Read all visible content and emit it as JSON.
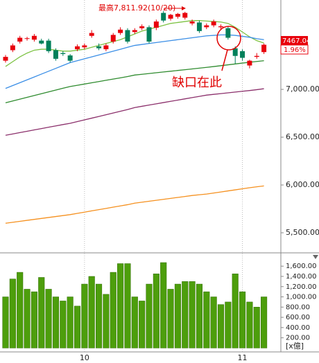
{
  "chart_data": [
    {
      "type": "candlestick",
      "open": [
        7300,
        7410,
        7500,
        7530,
        7520,
        7510,
        7510,
        7410,
        7380,
        7355,
        7420,
        7440,
        7560,
        7450,
        7420,
        7500,
        7590,
        7620,
        7600,
        7640,
        7650,
        7645,
        7800,
        7740,
        7760,
        7750,
        7690,
        7700,
        7650,
        7670,
        7650,
        7640,
        7430,
        7400,
        7250,
        7340,
        7390
      ],
      "high": [
        7360,
        7480,
        7560,
        7550,
        7580,
        7530,
        7530,
        7430,
        7400,
        7370,
        7470,
        7480,
        7620,
        7480,
        7480,
        7590,
        7650,
        7640,
        7640,
        7680,
        7670,
        7730,
        7820,
        7790,
        7800,
        7811.92,
        7730,
        7720,
        7690,
        7730,
        7680,
        7660,
        7450,
        7420,
        7310,
        7380,
        7480
      ],
      "low": [
        7280,
        7390,
        7480,
        7510,
        7500,
        7470,
        7380,
        7300,
        7350,
        7280,
        7400,
        7420,
        7540,
        7410,
        7400,
        7480,
        7570,
        7480,
        7580,
        7620,
        7480,
        7620,
        7700,
        7720,
        7740,
        7730,
        7670,
        7590,
        7630,
        7650,
        7630,
        7520,
        7270,
        7300,
        7220,
        7320,
        7370
      ],
      "close": [
        7340,
        7460,
        7540,
        7535,
        7560,
        7480,
        7400,
        7320,
        7370,
        7300,
        7450,
        7460,
        7590,
        7430,
        7460,
        7570,
        7625,
        7500,
        7620,
        7660,
        7500,
        7710,
        7720,
        7780,
        7790,
        7800,
        7710,
        7610,
        7670,
        7710,
        7660,
        7540,
        7350,
        7330,
        7300,
        7350,
        7467.04
      ],
      "up_color": "#e8000b",
      "down_color": "#00805a",
      "series": [
        {
          "color": "#7cc242",
          "values": [
            7240,
            7290,
            7340,
            7380,
            7410,
            7420,
            7420,
            7410,
            7400,
            7400,
            7410,
            7420,
            7440,
            7460,
            7480,
            7500,
            7520,
            7550,
            7580,
            7610,
            7630,
            7650,
            7670,
            7690,
            7700,
            7710,
            7720,
            7720,
            7715,
            7710,
            7705,
            7690,
            7650,
            7600,
            7550,
            7510,
            7485
          ]
        },
        {
          "color": "#3a8ee6",
          "values": [
            7010,
            7040,
            7070,
            7100,
            7130,
            7160,
            7190,
            7220,
            7250,
            7280,
            7300,
            7320,
            7340,
            7360,
            7380,
            7400,
            7420,
            7440,
            7460,
            7470,
            7480,
            7490,
            7500,
            7510,
            7520,
            7530,
            7540,
            7550,
            7560,
            7565,
            7570,
            7570,
            7565,
            7555,
            7545,
            7530,
            7520
          ]
        },
        {
          "color": "#2e8b2e",
          "values": [
            6860,
            6879,
            6898,
            6917,
            6936,
            6955,
            6974,
            6993,
            7012,
            7030,
            7043,
            7056,
            7069,
            7082,
            7095,
            7108,
            7121,
            7134,
            7150,
            7158,
            7166,
            7174,
            7182,
            7190,
            7198,
            7206,
            7214,
            7222,
            7230,
            7239,
            7248,
            7257,
            7266,
            7275,
            7284,
            7292,
            7300
          ]
        },
        {
          "color": "#8b2f6b",
          "values": [
            6520,
            6534,
            6548,
            6562,
            6576,
            6590,
            6604,
            6618,
            6632,
            6645,
            6663,
            6681,
            6699,
            6717,
            6735,
            6753,
            6771,
            6789,
            6810,
            6823,
            6836,
            6849,
            6862,
            6875,
            6888,
            6901,
            6914,
            6927,
            6940,
            6948,
            6956,
            6964,
            6972,
            6980,
            6988,
            6997,
            7007
          ]
        },
        {
          "color": "#f5901e",
          "values": [
            5600,
            5610,
            5620,
            5630,
            5640,
            5650,
            5660,
            5670,
            5680,
            5690,
            5703,
            5716,
            5729,
            5742,
            5755,
            5768,
            5781,
            5794,
            5810,
            5820,
            5830,
            5840,
            5850,
            5860,
            5870,
            5880,
            5890,
            5898,
            5905,
            5916,
            5927,
            5938,
            5949,
            5960,
            5971,
            5981,
            5990
          ]
        }
      ],
      "ylim": [
        5290,
        7935
      ],
      "yticks": [
        {
          "value": 7000,
          "label": "7,000.00"
        },
        {
          "value": 6500,
          "label": "6,500.00"
        },
        {
          "value": 6000,
          "label": "6,000.00"
        },
        {
          "value": 5500,
          "label": "5,500.00"
        }
      ],
      "high_annotation": "最高7,811.92(10/20)",
      "gap_annotation": "缺口在此",
      "last_close_label": "7467.04",
      "change_label": "1.96%"
    },
    {
      "type": "bar",
      "categories": [
        null,
        null,
        null,
        null,
        null,
        null,
        null,
        null,
        null,
        null,
        null,
        "10",
        null,
        null,
        null,
        null,
        null,
        null,
        null,
        null,
        null,
        null,
        null,
        null,
        null,
        null,
        null,
        null,
        null,
        null,
        null,
        null,
        null,
        "11",
        null,
        null,
        null
      ],
      "values": [
        1000,
        1350,
        1480,
        1150,
        1100,
        1380,
        1150,
        1000,
        920,
        1000,
        820,
        1250,
        1400,
        1250,
        1050,
        1480,
        1650,
        1650,
        1000,
        920,
        1250,
        1450,
        1670,
        1150,
        1250,
        1300,
        1300,
        1250,
        1100,
        1000,
        850,
        900,
        1450,
        1100,
        900,
        800,
        1000
      ],
      "color": "#4d9e0c",
      "ylim": [
        0,
        1860
      ],
      "yticks": [
        {
          "value": 200,
          "label": "200.00"
        },
        {
          "value": 400,
          "label": "400.00"
        },
        {
          "value": 600,
          "label": "600.00"
        },
        {
          "value": 800,
          "label": "800.00"
        },
        {
          "value": 1000,
          "label": "1,000.00"
        },
        {
          "value": 1200,
          "label": "1,200.00"
        },
        {
          "value": 1400,
          "label": "1,400.00"
        },
        {
          "value": 1600,
          "label": "1,600.00"
        }
      ],
      "unit_label": "[x億]"
    }
  ]
}
